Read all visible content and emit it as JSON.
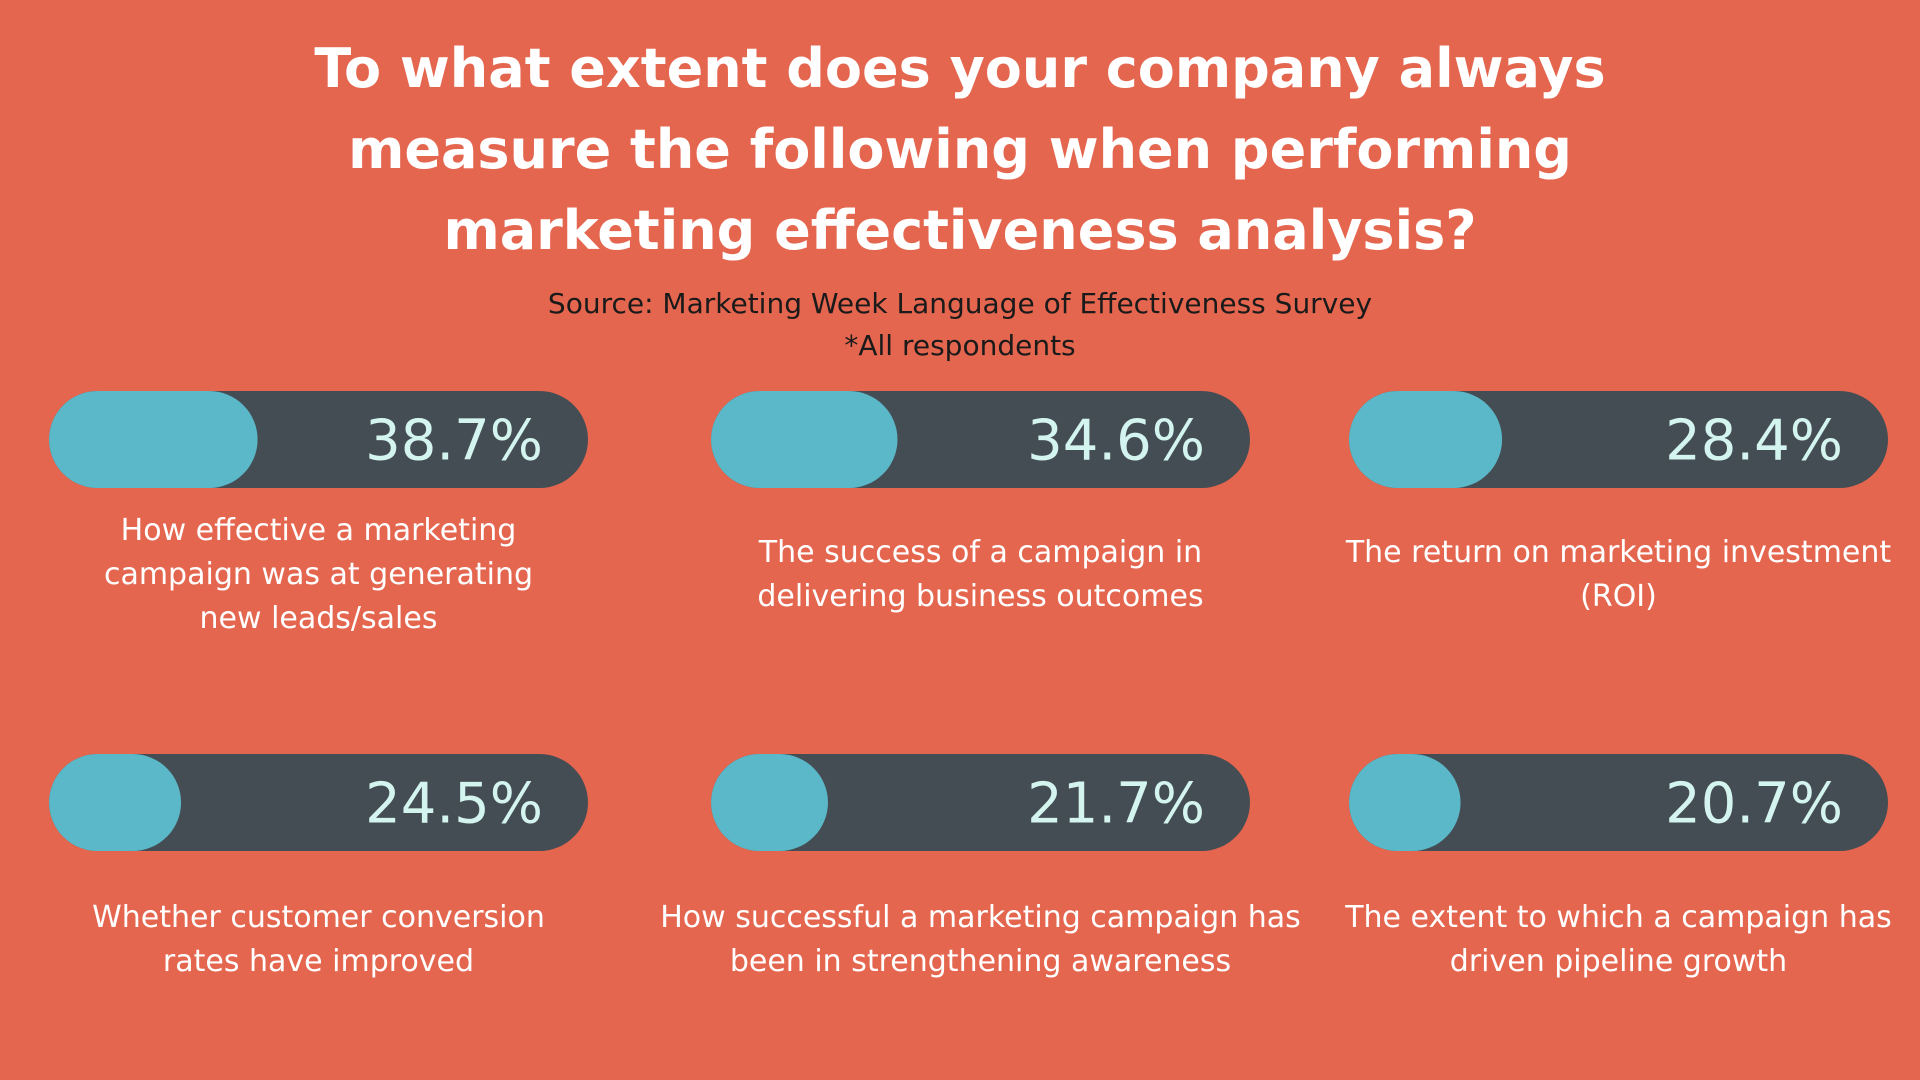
{
  "chart_data": {
    "type": "progress",
    "title": "To what extent does your company always measure the following when performing marketing effectiveness analysis?",
    "subtitle": "Source: Marketing Week Language of Effectiveness Survey",
    "note": "*All respondents",
    "categories": [
      "How effective a marketing campaign was at generating new leads/sales",
      "The success of a campaign in delivering business outcomes",
      "The return on marketing investment (ROI)",
      "Whether customer conversion rates have improved",
      "How successful a marketing campaign has been in strengthening awareness",
      "The extent to which a campaign has driven pipeline growth"
    ],
    "values": [
      38.7,
      34.6,
      28.4,
      24.5,
      21.7,
      20.7
    ],
    "value_labels": [
      "38.7%",
      "34.6%",
      "28.4%",
      "24.5%",
      "21.7%",
      "20.7%"
    ],
    "xlim": [
      0,
      100
    ],
    "color": "#5bb8c8",
    "track_color": "#454d54"
  }
}
